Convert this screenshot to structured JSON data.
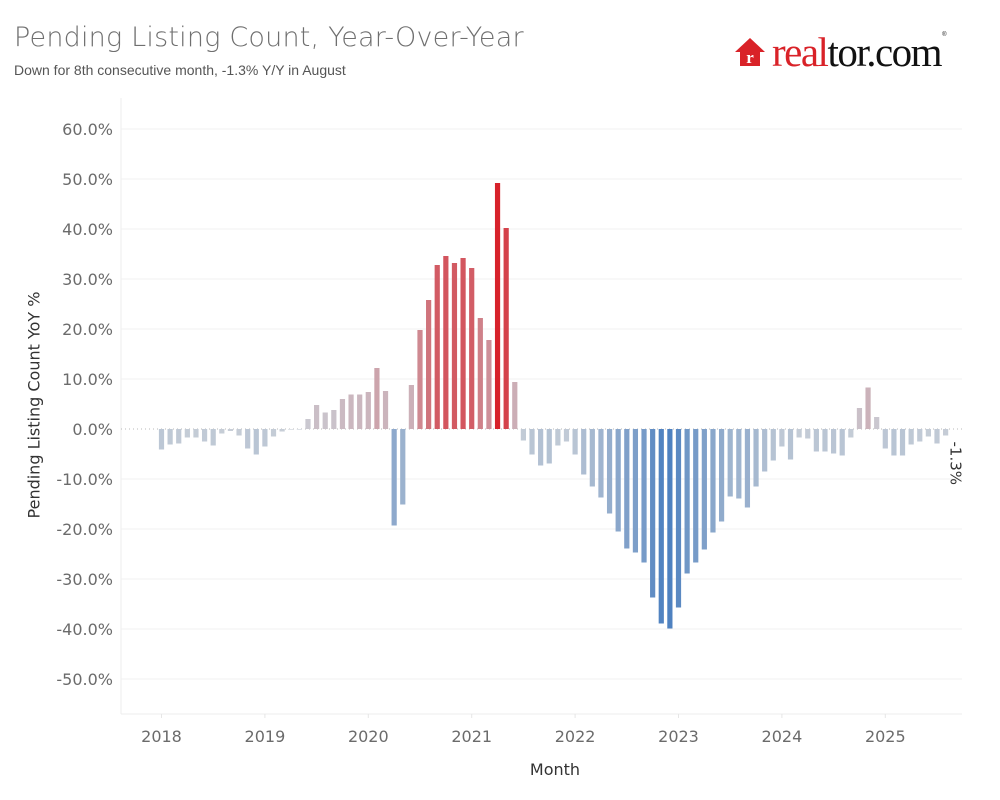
{
  "header": {
    "title": "Pending Listing Count, Year-Over-Year",
    "subtitle": "Down for 8th consecutive month, -1.3% Y/Y in August"
  },
  "logo": {
    "part1": "real",
    "part2": "tor.com",
    "registered": "®",
    "house_letter": "r",
    "brand_color": "#d92228"
  },
  "chart_data": {
    "type": "bar",
    "title": "Pending Listing Count, Year-Over-Year",
    "subtitle": "Down for 8th consecutive month, -1.3% Y/Y in August",
    "xlabel": "Month",
    "ylabel": "Pending Listing Count YoY %",
    "ylim": [
      -0.55,
      0.62
    ],
    "yticks": [
      0.6,
      0.5,
      0.4,
      0.3,
      0.2,
      0.1,
      0.0,
      -0.1,
      -0.2,
      -0.3,
      -0.4,
      -0.5
    ],
    "ytick_labels": [
      "60.0%",
      "50.0%",
      "40.0%",
      "30.0%",
      "20.0%",
      "10.0%",
      "0.0%",
      "-10.0%",
      "-20.0%",
      "-30.0%",
      "-40.0%",
      "-50.0%"
    ],
    "xtick_labels": [
      "2018",
      "2019",
      "2020",
      "2021",
      "2022",
      "2023",
      "2024",
      "2025"
    ],
    "start_month": "2018-01",
    "grid": true,
    "color_scale": {
      "negative": "#4e81c0",
      "neutral": "#c9cfd7",
      "positive": "#d7222b"
    },
    "annotation": {
      "label": "-1.3%",
      "month": "2025-08"
    },
    "series": [
      {
        "name": "Pending Listing Count YoY %",
        "values": [
          -0.041,
          -0.031,
          -0.029,
          -0.017,
          -0.017,
          -0.025,
          -0.033,
          -0.009,
          -0.004,
          -0.013,
          -0.039,
          -0.051,
          -0.035,
          -0.015,
          -0.005,
          -0.001,
          -0.001,
          0.02,
          0.048,
          0.033,
          0.038,
          0.06,
          0.069,
          0.069,
          0.074,
          0.122,
          0.076,
          -0.193,
          -0.151,
          0.088,
          0.198,
          0.258,
          0.328,
          0.346,
          0.332,
          0.342,
          0.322,
          0.222,
          0.178,
          0.492,
          0.402,
          0.094,
          -0.023,
          -0.051,
          -0.073,
          -0.069,
          -0.033,
          -0.025,
          -0.051,
          -0.091,
          -0.115,
          -0.137,
          -0.169,
          -0.205,
          -0.239,
          -0.247,
          -0.267,
          -0.337,
          -0.389,
          -0.399,
          -0.357,
          -0.289,
          -0.267,
          -0.241,
          -0.207,
          -0.185,
          -0.135,
          -0.139,
          -0.157,
          -0.115,
          -0.085,
          -0.063,
          -0.035,
          -0.061,
          -0.017,
          -0.019,
          -0.045,
          -0.045,
          -0.049,
          -0.053,
          -0.017,
          0.042,
          0.083,
          0.024,
          -0.039,
          -0.053,
          -0.053,
          -0.031,
          -0.025,
          -0.015,
          -0.029,
          -0.013
        ]
      }
    ]
  }
}
